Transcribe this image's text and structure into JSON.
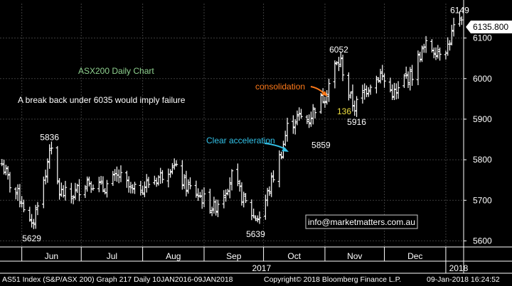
{
  "chart_data": {
    "type": "bar",
    "style": "ohlc",
    "title": "ASX200 Daily Chart",
    "y_axis": {
      "ticks": [
        5600,
        5700,
        5800,
        5900,
        6000,
        6100
      ],
      "ylim": [
        5585,
        6185
      ],
      "position": "right",
      "grid": true
    },
    "x_axis": {
      "months": [
        "Jun",
        "Jul",
        "Aug",
        "Sep",
        "Oct",
        "Nov",
        "Dec"
      ],
      "years": [
        "2017",
        "2018"
      ],
      "range": [
        "2017-05-21",
        "2018-01-10"
      ]
    },
    "last_value": "6135.800",
    "anchors": [
      {
        "date": "2017-05-22",
        "value": 5790
      },
      {
        "date": "2017-05-26",
        "value": 5740
      },
      {
        "date": "2017-06-01",
        "value": 5700
      },
      {
        "date": "2017-06-06",
        "value": 5629
      },
      {
        "date": "2017-06-09",
        "value": 5700
      },
      {
        "date": "2017-06-13",
        "value": 5760
      },
      {
        "date": "2017-06-15",
        "value": 5836
      },
      {
        "date": "2017-06-20",
        "value": 5720
      },
      {
        "date": "2017-06-26",
        "value": 5710
      },
      {
        "date": "2017-07-04",
        "value": 5750
      },
      {
        "date": "2017-07-12",
        "value": 5730
      },
      {
        "date": "2017-07-20",
        "value": 5760
      },
      {
        "date": "2017-07-27",
        "value": 5720
      },
      {
        "date": "2017-08-03",
        "value": 5740
      },
      {
        "date": "2017-08-10",
        "value": 5760
      },
      {
        "date": "2017-08-16",
        "value": 5790
      },
      {
        "date": "2017-08-22",
        "value": 5740
      },
      {
        "date": "2017-08-30",
        "value": 5710
      },
      {
        "date": "2017-09-06",
        "value": 5680
      },
      {
        "date": "2017-09-12",
        "value": 5730
      },
      {
        "date": "2017-09-15",
        "value": 5760
      },
      {
        "date": "2017-09-21",
        "value": 5700
      },
      {
        "date": "2017-09-26",
        "value": 5660
      },
      {
        "date": "2017-09-29",
        "value": 5660
      },
      {
        "date": "2017-10-02",
        "value": 5700
      },
      {
        "date": "2017-10-05",
        "value": 5745
      },
      {
        "date": "2017-10-10",
        "value": 5820
      },
      {
        "date": "2017-10-13",
        "value": 5880
      },
      {
        "date": "2017-10-18",
        "value": 5905
      },
      {
        "date": "2017-10-24",
        "value": 5900
      },
      {
        "date": "2017-10-27",
        "value": 5930
      },
      {
        "date": "2017-11-01",
        "value": 5960
      },
      {
        "date": "2017-11-06",
        "value": 6030
      },
      {
        "date": "2017-11-09",
        "value": 6040
      },
      {
        "date": "2017-11-13",
        "value": 5960
      },
      {
        "date": "2017-11-16",
        "value": 5930
      },
      {
        "date": "2017-11-21",
        "value": 5970
      },
      {
        "date": "2017-11-24",
        "value": 5990
      },
      {
        "date": "2017-11-29",
        "value": 6010
      },
      {
        "date": "2017-12-04",
        "value": 5970
      },
      {
        "date": "2017-12-07",
        "value": 5960
      },
      {
        "date": "2017-12-11",
        "value": 6000
      },
      {
        "date": "2017-12-15",
        "value": 6010
      },
      {
        "date": "2017-12-19",
        "value": 6060
      },
      {
        "date": "2017-12-22",
        "value": 6080
      },
      {
        "date": "2017-12-28",
        "value": 6070
      },
      {
        "date": "2018-01-02",
        "value": 6080
      },
      {
        "date": "2018-01-05",
        "value": 6125
      },
      {
        "date": "2018-01-09",
        "value": 6136
      }
    ],
    "price_labels": [
      {
        "text": "5836",
        "date": "2017-06-15",
        "value": 5836,
        "place": "above"
      },
      {
        "text": "5629",
        "date": "2017-06-06",
        "value": 5629,
        "place": "below"
      },
      {
        "text": "5639",
        "date": "2017-09-27",
        "value": 5639,
        "place": "below"
      },
      {
        "text": "5859",
        "date": "2017-10-30",
        "value": 5859,
        "place": "below"
      },
      {
        "text": "6052",
        "date": "2017-11-08",
        "value": 6052,
        "place": "above"
      },
      {
        "text": "5916",
        "date": "2017-11-17",
        "value": 5916,
        "place": "below"
      },
      {
        "text": "6149",
        "date": "2018-01-08",
        "value": 6149,
        "place": "above"
      }
    ],
    "annotations": {
      "title": "ASX200 Daily Chart",
      "failure_note": "A break back under 6035 would imply failure",
      "consolidation": "consolidation",
      "acceleration": "Clear acceleration",
      "points": "136",
      "contact": "info@marketmatters.com.au"
    },
    "colors": {
      "background": "#000000",
      "bars": "#ffffff",
      "grid": "#3d3d3d",
      "title": "#8fd18f",
      "consolidation": "#ff7a1a",
      "acceleration": "#33c2e8",
      "points": "#f0e040",
      "contact_border": "#cccccc"
    }
  },
  "footer": {
    "left": "AS51 Index (S&P/ASX 200) Graph 217  Daily 10JAN2016-09JAN2018",
    "center": "Copyright© 2018 Bloomberg Finance L.P.",
    "right": "09-Jan-2018 16:24:52"
  }
}
